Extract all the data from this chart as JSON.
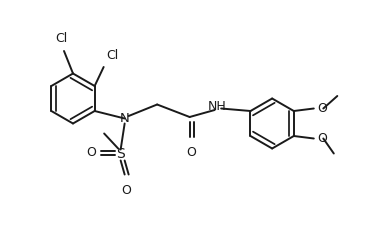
{
  "bg_color": "#ffffff",
  "line_color": "#1a1a1a",
  "text_color": "#1a1a1a",
  "lw": 1.4,
  "fs": 8.5,
  "figsize": [
    3.86,
    2.31
  ],
  "dpi": 100,
  "xlim": [
    0.0,
    7.7
  ],
  "ylim": [
    0.0,
    4.62
  ]
}
